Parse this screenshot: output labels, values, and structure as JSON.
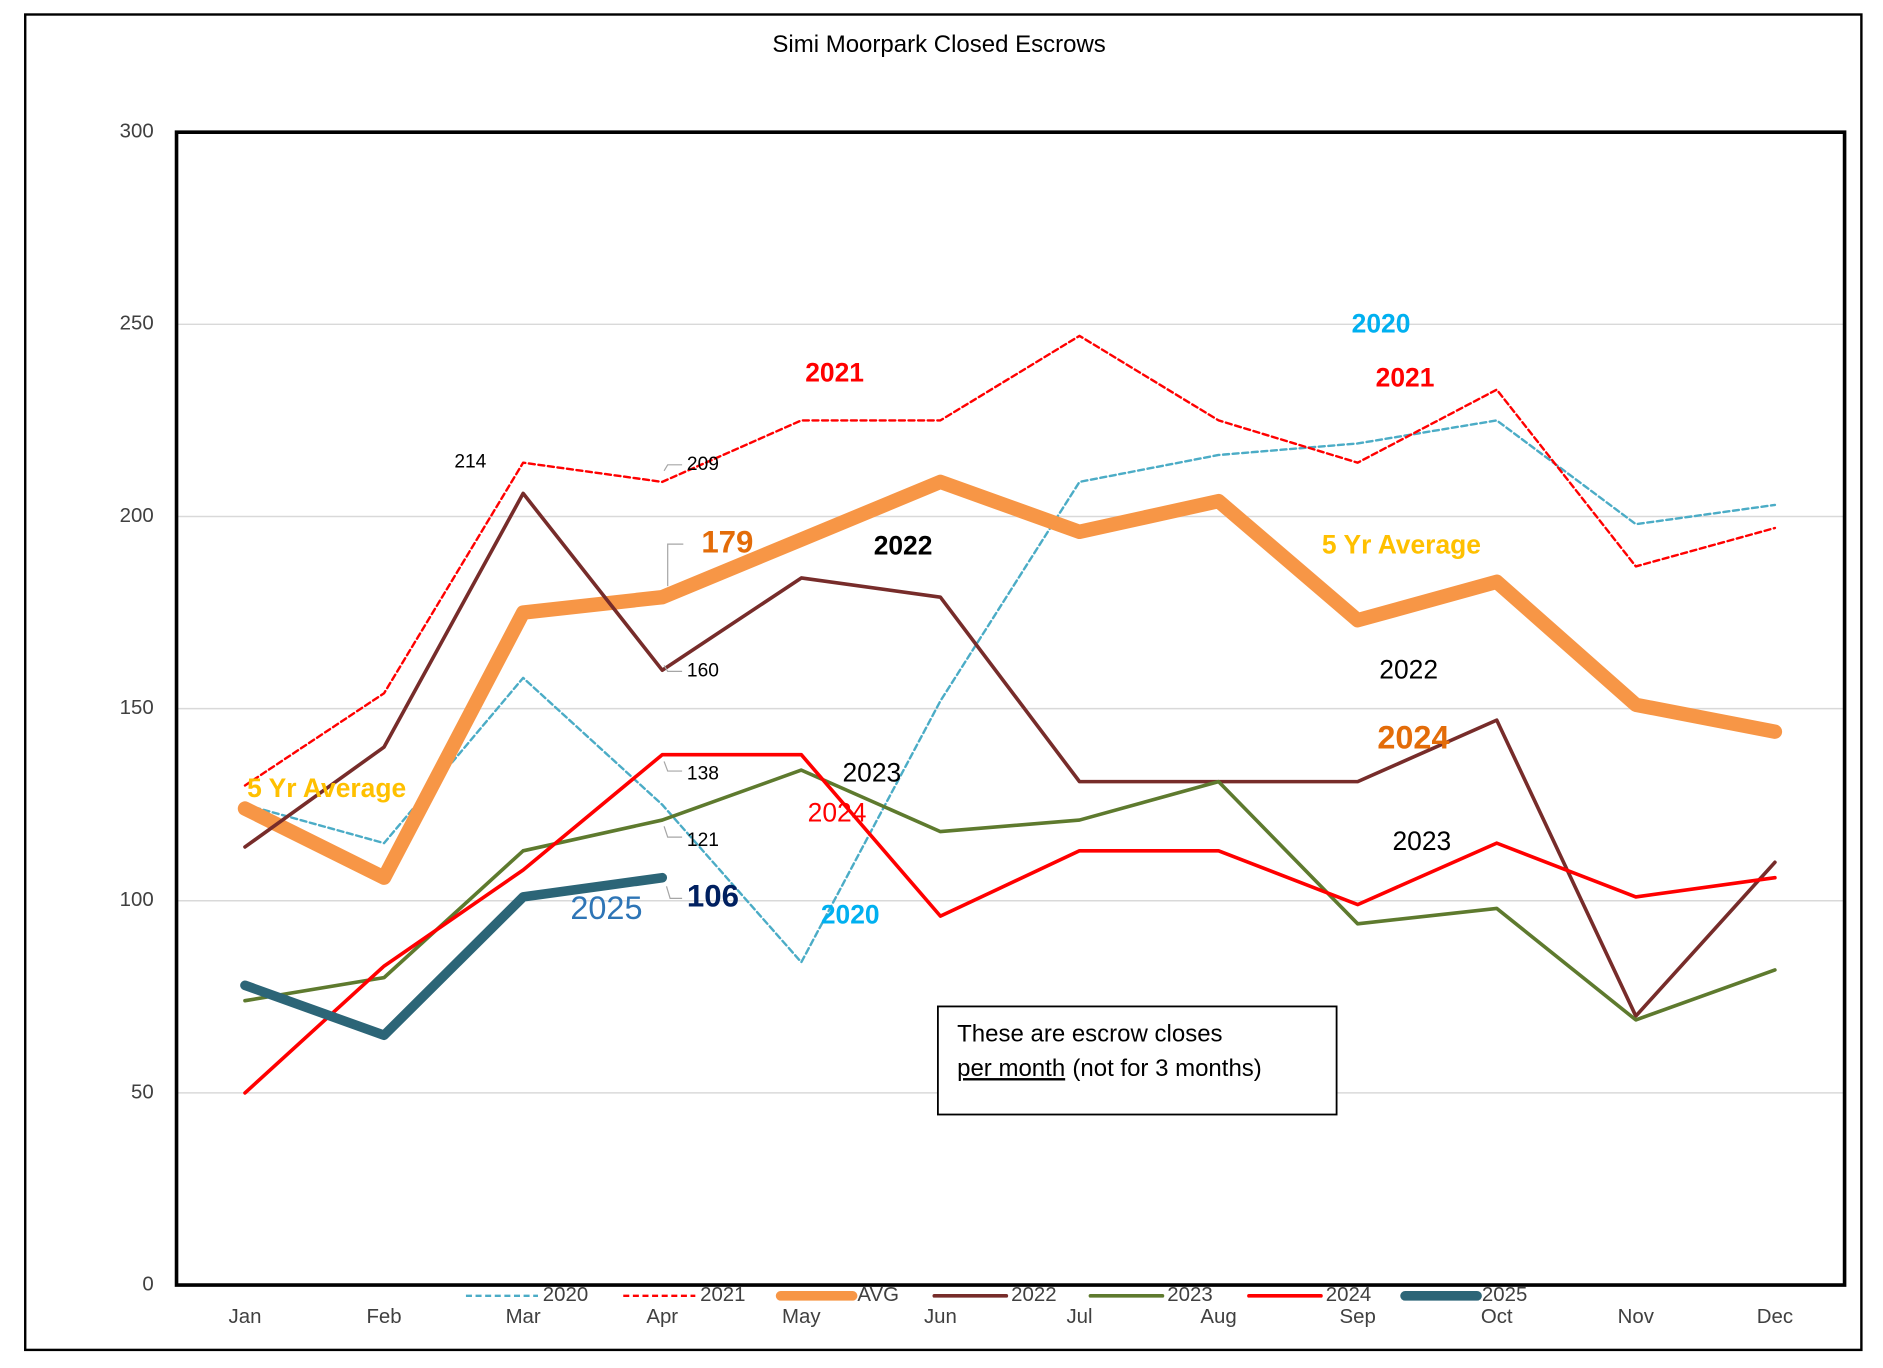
{
  "chart_data": {
    "type": "line",
    "title": "Simi Moorpark Closed Escrows",
    "categories": [
      "Jan",
      "Feb",
      "Mar",
      "Apr",
      "May",
      "Jun",
      "Jul",
      "Aug",
      "Sep",
      "Oct",
      "Nov",
      "Dec"
    ],
    "ylim": [
      0,
      300
    ],
    "yticks": [
      0,
      50,
      100,
      150,
      200,
      250,
      300
    ],
    "grid": true,
    "legend": "bottom",
    "series": [
      {
        "name": "2020",
        "color": "#4bacc6",
        "dashed": true,
        "width": 2,
        "values": [
          125,
          115,
          158,
          125,
          84,
          152,
          209,
          216,
          219,
          225,
          198,
          203
        ]
      },
      {
        "name": "2021",
        "color": "#ff0000",
        "dashed": true,
        "width": 2,
        "values": [
          130,
          154,
          214,
          209,
          225,
          225,
          247,
          225,
          214,
          233,
          187,
          197
        ]
      },
      {
        "name": "AVG",
        "color": "#f79646",
        "dashed": false,
        "width": 12,
        "values": [
          124,
          106,
          175,
          179,
          194,
          209,
          196,
          204,
          173,
          183,
          151,
          144
        ]
      },
      {
        "name": "2022",
        "color": "#772c2a",
        "dashed": false,
        "width": 3,
        "values": [
          114,
          140,
          206,
          160,
          184,
          179,
          131,
          131,
          131,
          147,
          70,
          110
        ]
      },
      {
        "name": "2023",
        "color": "#5e7a2e",
        "dashed": false,
        "width": 3,
        "values": [
          74,
          80,
          113,
          121,
          134,
          118,
          121,
          131,
          94,
          98,
          69,
          82
        ]
      },
      {
        "name": "2024",
        "color": "#ff0000",
        "dashed": false,
        "width": 3,
        "values": [
          50,
          83,
          108,
          138,
          138,
          96,
          113,
          113,
          99,
          115,
          101,
          106
        ]
      },
      {
        "name": "2025",
        "color": "#2c6577",
        "dashed": false,
        "width": 8,
        "values": [
          78,
          65,
          101,
          106,
          null,
          null,
          null,
          null,
          null,
          null,
          null,
          null
        ]
      }
    ],
    "annotations": [
      "2021",
      "2020",
      "2021",
      "5 Yr Average",
      "2022",
      "2022",
      "2024",
      "2023",
      "2024",
      "2023",
      "2025",
      "2020",
      "5 Yr Average"
    ],
    "note": [
      "These are escrow closes",
      "per month",
      "(not for 3 months)"
    ]
  }
}
